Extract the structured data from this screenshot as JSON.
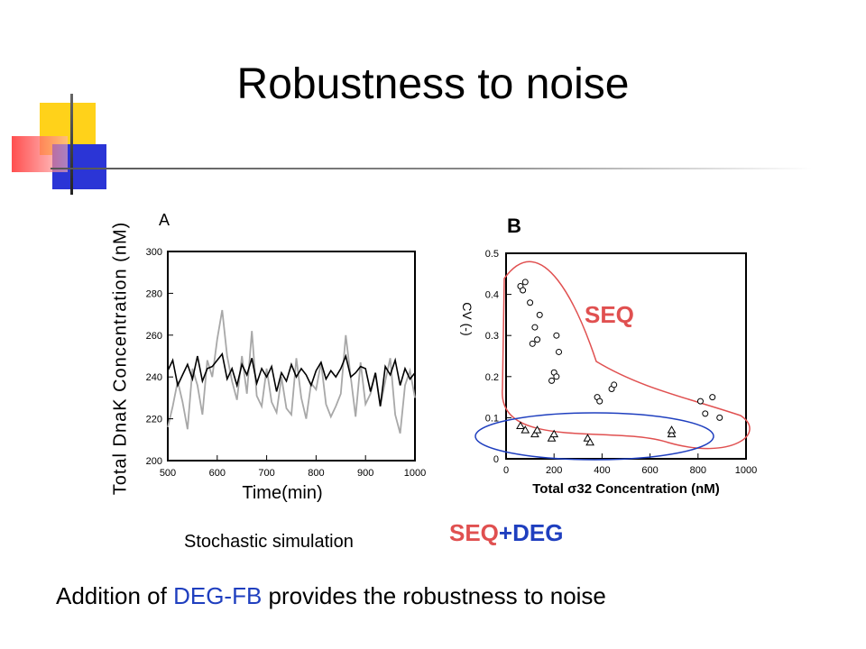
{
  "slide": {
    "title": "Robustness to noise",
    "caption_sim": "Stochastic simulation",
    "seqdeg_part1": "SEQ",
    "seqdeg_part2": "+DEG",
    "bottom_pre": "Addition of ",
    "bottom_highlight": "DEG-FB",
    "bottom_post": " provides the robustness to noise",
    "colors": {
      "accent_blue": "#1f3fbf",
      "accent_red": "#e05050",
      "deco_yellow": "#ffd21a",
      "deco_blue": "#2b35d6",
      "deco_red": "#ff3b3b"
    }
  },
  "chart_data": [
    {
      "type": "line",
      "panel_label": "A",
      "ylabel": "Total DnaK Concentration (nM)",
      "xlabel": "Time(min)",
      "xlim": [
        500,
        1000
      ],
      "ylim": [
        200,
        300
      ],
      "xticks": [
        500,
        600,
        700,
        800,
        900,
        1000
      ],
      "yticks": [
        200,
        220,
        240,
        260,
        280,
        300
      ],
      "series": [
        {
          "color": "#a8a8a8",
          "x": [
            500,
            510,
            520,
            530,
            540,
            550,
            560,
            570,
            580,
            590,
            600,
            610,
            620,
            630,
            640,
            650,
            660,
            670,
            680,
            690,
            700,
            710,
            720,
            730,
            740,
            750,
            760,
            770,
            780,
            790,
            800,
            810,
            820,
            830,
            840,
            850,
            860,
            870,
            880,
            890,
            900,
            910,
            920,
            930,
            940,
            950,
            960,
            970,
            980,
            990,
            1000
          ],
          "y": [
            216,
            226,
            238,
            228,
            215,
            244,
            236,
            222,
            248,
            240,
            258,
            272,
            250,
            238,
            229,
            250,
            232,
            262,
            231,
            226,
            244,
            228,
            223,
            240,
            225,
            222,
            249,
            230,
            220,
            237,
            234,
            247,
            227,
            221,
            226,
            232,
            260,
            240,
            221,
            247,
            227,
            232,
            242,
            226,
            238,
            249,
            222,
            213,
            236,
            243,
            230
          ]
        },
        {
          "color": "#000000",
          "x": [
            500,
            510,
            520,
            530,
            540,
            550,
            560,
            570,
            580,
            590,
            600,
            610,
            620,
            630,
            640,
            650,
            660,
            670,
            680,
            690,
            700,
            710,
            720,
            730,
            740,
            750,
            760,
            770,
            780,
            790,
            800,
            810,
            820,
            830,
            840,
            850,
            860,
            870,
            880,
            890,
            900,
            910,
            920,
            930,
            940,
            950,
            960,
            970,
            980,
            990,
            1000
          ],
          "y": [
            243,
            248,
            236,
            241,
            246,
            239,
            250,
            238,
            244,
            245,
            248,
            251,
            239,
            244,
            236,
            246,
            241,
            249,
            237,
            244,
            240,
            245,
            233,
            242,
            238,
            246,
            240,
            244,
            241,
            236,
            243,
            247,
            239,
            243,
            240,
            244,
            250,
            240,
            242,
            245,
            244,
            233,
            242,
            226,
            245,
            241,
            248,
            236,
            244,
            239,
            242
          ]
        }
      ]
    },
    {
      "type": "scatter",
      "panel_label": "B",
      "ylabel": "CV (-)",
      "xlabel": "Total σ32 Concentration (nM)",
      "xlim": [
        0,
        1000
      ],
      "ylim": [
        0,
        0.5
      ],
      "xticks": [
        0,
        200,
        400,
        600,
        800,
        1000
      ],
      "yticks": [
        0,
        0.1,
        0.2,
        0.3,
        0.4,
        0.5
      ],
      "series": [
        {
          "marker": "circle",
          "points": [
            [
              60,
              0.42
            ],
            [
              70,
              0.41
            ],
            [
              80,
              0.43
            ],
            [
              100,
              0.38
            ],
            [
              110,
              0.28
            ],
            [
              120,
              0.32
            ],
            [
              130,
              0.29
            ],
            [
              140,
              0.35
            ],
            [
              190,
              0.19
            ],
            [
              200,
              0.21
            ],
            [
              210,
              0.3
            ],
            [
              220,
              0.26
            ],
            [
              210,
              0.2
            ],
            [
              380,
              0.15
            ],
            [
              390,
              0.14
            ],
            [
              440,
              0.17
            ],
            [
              450,
              0.18
            ],
            [
              810,
              0.14
            ],
            [
              830,
              0.11
            ],
            [
              860,
              0.15
            ],
            [
              890,
              0.1
            ]
          ]
        },
        {
          "marker": "triangle",
          "points": [
            [
              60,
              0.08
            ],
            [
              80,
              0.07
            ],
            [
              120,
              0.06
            ],
            [
              130,
              0.07
            ],
            [
              190,
              0.05
            ],
            [
              200,
              0.06
            ],
            [
              340,
              0.05
            ],
            [
              350,
              0.04
            ],
            [
              690,
              0.06
            ],
            [
              690,
              0.07
            ]
          ]
        }
      ],
      "annotations": [
        {
          "text": "SEQ",
          "color": "#e05050"
        }
      ]
    }
  ]
}
